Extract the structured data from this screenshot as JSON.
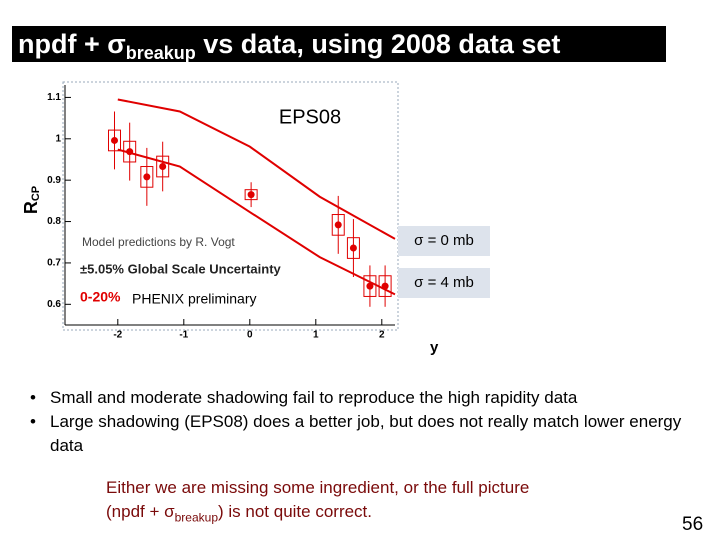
{
  "header": {
    "title": {
      "prefix": "npdf + σ",
      "subscript": "breakup",
      "suffix": "vs data, using 2008 data set"
    }
  },
  "chart_data": {
    "type": "scatter",
    "ylabel": "R",
    "ylabel_subscript": "CP",
    "xlabel": "y",
    "xlim": [
      -2.8,
      2.2
    ],
    "xticks": [
      -2,
      -1,
      0,
      1,
      2
    ],
    "ylim": [
      0.55,
      1.13
    ],
    "yticks": [
      0.6,
      0.7,
      0.8,
      0.9,
      1,
      1.1
    ],
    "annotations": {
      "model": "EPS08",
      "credit": "Model predictions by R. Vogt",
      "scale": "±5.05% Global Scale Uncertainty",
      "centrality": "0-20%"
    },
    "series": [
      {
        "name": "PHENIX preliminary",
        "color": "#e00000",
        "x": [
          -2.05,
          -1.82,
          -1.56,
          -1.32,
          0.02,
          1.34,
          1.57,
          1.82,
          2.05
        ],
        "values": [
          0.996,
          0.969,
          0.908,
          0.933,
          0.865,
          0.792,
          0.736,
          0.644,
          0.644
        ],
        "errors": [
          0.07,
          0.07,
          0.07,
          0.06,
          0.03,
          0.07,
          0.07,
          0.05,
          0.05
        ],
        "sys": [
          0.025,
          0.025,
          0.025,
          0.025,
          0.012,
          0.025,
          0.025,
          0.025,
          0.025
        ]
      },
      {
        "name": "σ = 0 mb",
        "color": "#e00000",
        "x": [
          -2,
          -1.06,
          0,
          1.06,
          2.2
        ],
        "values": [
          1.095,
          1.066,
          0.981,
          0.86,
          0.758
        ]
      },
      {
        "name": "σ = 4 mb",
        "color": "#e00000",
        "x": [
          -2,
          -1.06,
          0,
          1.06,
          2.2
        ],
        "values": [
          0.974,
          0.933,
          0.823,
          0.714,
          0.624
        ]
      }
    ]
  },
  "bullets": [
    "Small and moderate shadowing fail to reproduce the high rapidity data",
    "Large shadowing (EPS08) does a better job, but does not really match lower energy data"
  ],
  "conclusion": {
    "line1": "Either we are missing some ingredient, or the full picture",
    "line2_prefix": "(npdf + σ",
    "line2_subscript": "breakup",
    "line2_suffix": ") is not quite correct."
  },
  "page_number": "56"
}
